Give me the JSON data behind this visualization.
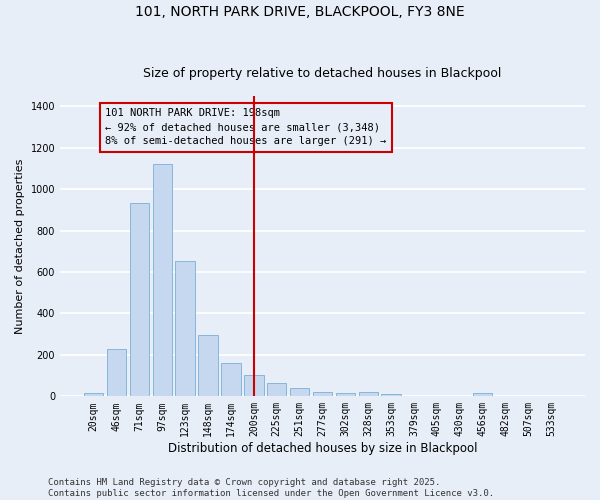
{
  "title": "101, NORTH PARK DRIVE, BLACKPOOL, FY3 8NE",
  "subtitle": "Size of property relative to detached houses in Blackpool",
  "xlabel": "Distribution of detached houses by size in Blackpool",
  "ylabel": "Number of detached properties",
  "categories": [
    "20sqm",
    "46sqm",
    "71sqm",
    "97sqm",
    "123sqm",
    "148sqm",
    "174sqm",
    "200sqm",
    "225sqm",
    "251sqm",
    "277sqm",
    "302sqm",
    "328sqm",
    "353sqm",
    "379sqm",
    "405sqm",
    "430sqm",
    "456sqm",
    "482sqm",
    "507sqm",
    "533sqm"
  ],
  "values": [
    15,
    230,
    935,
    1120,
    655,
    295,
    160,
    105,
    65,
    42,
    22,
    18,
    20,
    9,
    0,
    0,
    0,
    18,
    0,
    0,
    0
  ],
  "bar_color": "#c5d8f0",
  "bar_edge_color": "#7aafd4",
  "vline_index": 7,
  "vline_color": "#cc0000",
  "annotation_text": "101 NORTH PARK DRIVE: 198sqm\n← 92% of detached houses are smaller (3,348)\n8% of semi-detached houses are larger (291) →",
  "annotation_box_edgecolor": "#cc0000",
  "ylim": [
    0,
    1450
  ],
  "yticks": [
    0,
    200,
    400,
    600,
    800,
    1000,
    1200,
    1400
  ],
  "footer": "Contains HM Land Registry data © Crown copyright and database right 2025.\nContains public sector information licensed under the Open Government Licence v3.0.",
  "background_color": "#e8eef8",
  "grid_color": "#ffffff",
  "title_fontsize": 10,
  "subtitle_fontsize": 9,
  "xlabel_fontsize": 8.5,
  "ylabel_fontsize": 8,
  "tick_fontsize": 7,
  "annotation_fontsize": 7.5,
  "footer_fontsize": 6.5
}
